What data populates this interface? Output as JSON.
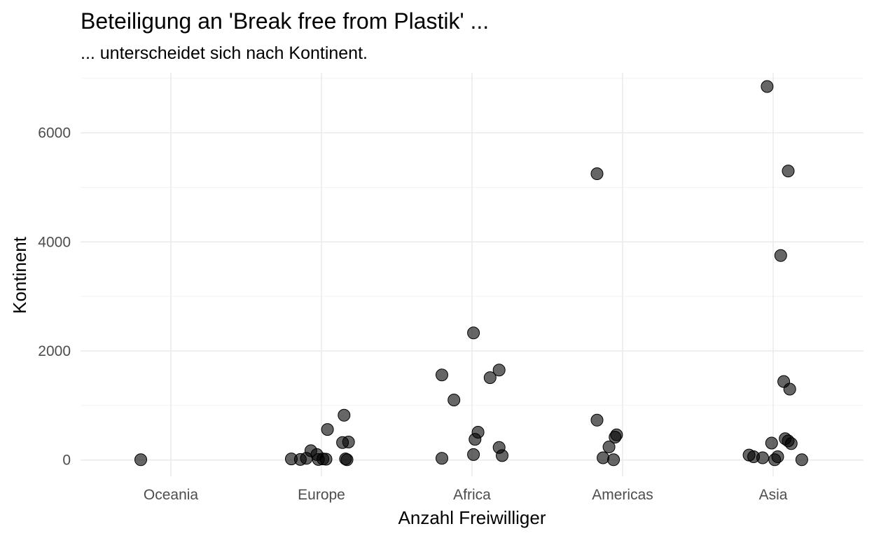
{
  "chart_data": {
    "type": "scatter",
    "title": "Beteiligung an 'Break free from Plastik' ...",
    "subtitle": "... unterscheidet sich nach Kontinent.",
    "xlabel": "Anzahl Freiwilliger",
    "ylabel": "Kontinent",
    "categories": [
      "Oceania",
      "Europe",
      "Africa",
      "Americas",
      "Asia"
    ],
    "ylim": [
      -300,
      7100
    ],
    "yticks": [
      0,
      2000,
      4000,
      6000
    ],
    "grid": true,
    "legend": "none",
    "points": [
      {
        "category": "Oceania",
        "jitter": -0.2,
        "value": 5
      },
      {
        "category": "Europe",
        "jitter": -0.2,
        "value": 20
      },
      {
        "category": "Europe",
        "jitter": -0.14,
        "value": 10
      },
      {
        "category": "Europe",
        "jitter": -0.1,
        "value": 30
      },
      {
        "category": "Europe",
        "jitter": -0.07,
        "value": 170
      },
      {
        "category": "Europe",
        "jitter": -0.03,
        "value": 100
      },
      {
        "category": "Europe",
        "jitter": -0.02,
        "value": 10
      },
      {
        "category": "Europe",
        "jitter": 0.01,
        "value": 20
      },
      {
        "category": "Europe",
        "jitter": 0.03,
        "value": 15
      },
      {
        "category": "Europe",
        "jitter": 0.04,
        "value": 560
      },
      {
        "category": "Europe",
        "jitter": 0.14,
        "value": 320
      },
      {
        "category": "Europe",
        "jitter": 0.15,
        "value": 820
      },
      {
        "category": "Europe",
        "jitter": 0.16,
        "value": 20
      },
      {
        "category": "Europe",
        "jitter": 0.17,
        "value": 5
      },
      {
        "category": "Europe",
        "jitter": 0.18,
        "value": 330
      },
      {
        "category": "Africa",
        "jitter": -0.2,
        "value": 1560
      },
      {
        "category": "Africa",
        "jitter": -0.2,
        "value": 30
      },
      {
        "category": "Africa",
        "jitter": -0.12,
        "value": 1100
      },
      {
        "category": "Africa",
        "jitter": 0.01,
        "value": 2330
      },
      {
        "category": "Africa",
        "jitter": 0.01,
        "value": 100
      },
      {
        "category": "Africa",
        "jitter": 0.02,
        "value": 380
      },
      {
        "category": "Africa",
        "jitter": 0.04,
        "value": 510
      },
      {
        "category": "Africa",
        "jitter": 0.12,
        "value": 1510
      },
      {
        "category": "Africa",
        "jitter": 0.18,
        "value": 1650
      },
      {
        "category": "Africa",
        "jitter": 0.18,
        "value": 230
      },
      {
        "category": "Africa",
        "jitter": 0.2,
        "value": 80
      },
      {
        "category": "Americas",
        "jitter": -0.17,
        "value": 5250
      },
      {
        "category": "Americas",
        "jitter": -0.17,
        "value": 730
      },
      {
        "category": "Americas",
        "jitter": -0.13,
        "value": 40
      },
      {
        "category": "Americas",
        "jitter": -0.09,
        "value": 240
      },
      {
        "category": "Americas",
        "jitter": -0.06,
        "value": 5
      },
      {
        "category": "Americas",
        "jitter": -0.05,
        "value": 420
      },
      {
        "category": "Americas",
        "jitter": -0.04,
        "value": 460
      },
      {
        "category": "Asia",
        "jitter": -0.16,
        "value": 90
      },
      {
        "category": "Asia",
        "jitter": -0.13,
        "value": 60
      },
      {
        "category": "Asia",
        "jitter": -0.07,
        "value": 40
      },
      {
        "category": "Asia",
        "jitter": -0.04,
        "value": 6850
      },
      {
        "category": "Asia",
        "jitter": -0.01,
        "value": 310
      },
      {
        "category": "Asia",
        "jitter": 0.01,
        "value": 5
      },
      {
        "category": "Asia",
        "jitter": 0.03,
        "value": 60
      },
      {
        "category": "Asia",
        "jitter": 0.05,
        "value": 3750
      },
      {
        "category": "Asia",
        "jitter": 0.07,
        "value": 1440
      },
      {
        "category": "Asia",
        "jitter": 0.08,
        "value": 390
      },
      {
        "category": "Asia",
        "jitter": 0.1,
        "value": 350
      },
      {
        "category": "Asia",
        "jitter": 0.1,
        "value": 5300
      },
      {
        "category": "Asia",
        "jitter": 0.11,
        "value": 1300
      },
      {
        "category": "Asia",
        "jitter": 0.12,
        "value": 300
      },
      {
        "category": "Asia",
        "jitter": 0.19,
        "value": 5
      }
    ]
  }
}
